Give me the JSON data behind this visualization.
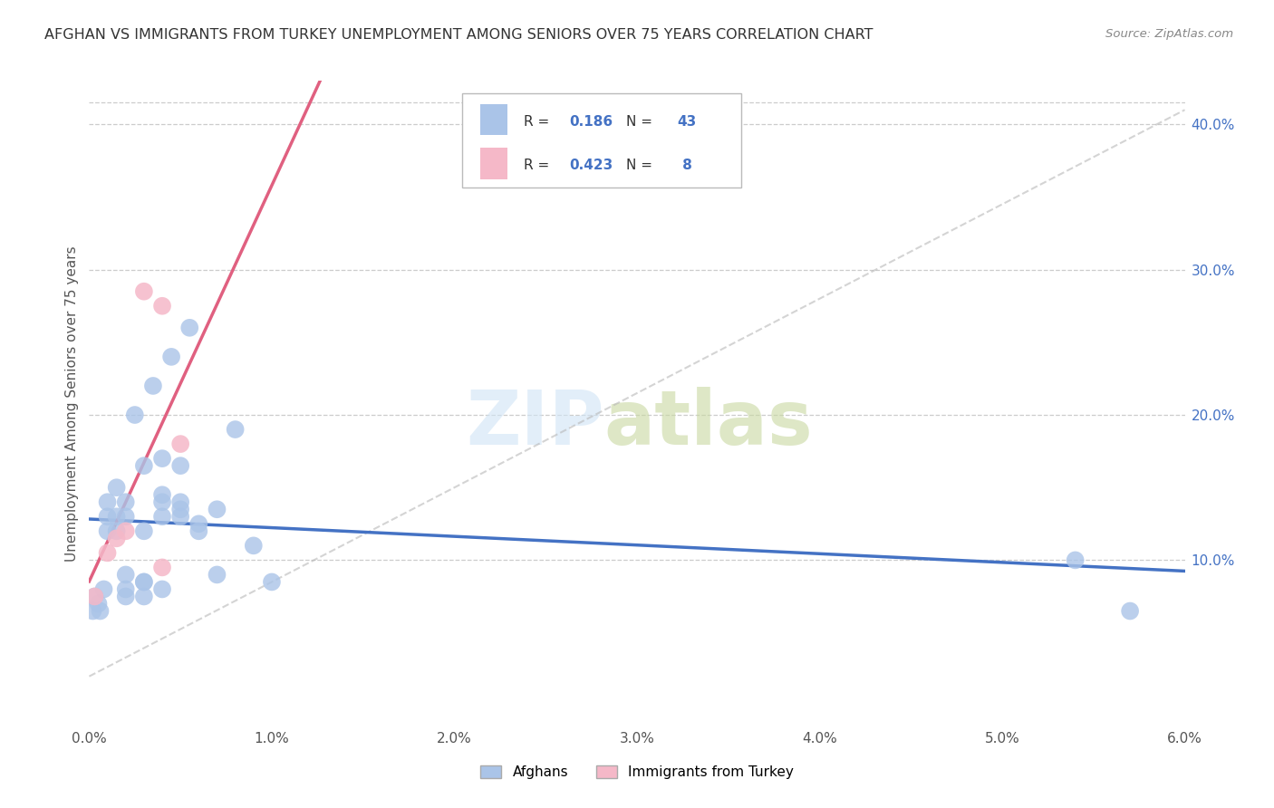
{
  "title": "AFGHAN VS IMMIGRANTS FROM TURKEY UNEMPLOYMENT AMONG SENIORS OVER 75 YEARS CORRELATION CHART",
  "source": "Source: ZipAtlas.com",
  "ylabel": "Unemployment Among Seniors over 75 years",
  "r_afghan": 0.186,
  "n_afghan": 43,
  "r_turkey": 0.423,
  "n_turkey": 8,
  "legend_label_afghan": "Afghans",
  "legend_label_turkey": "Immigrants from Turkey",
  "color_afghan": "#aac4e8",
  "color_turkey": "#f5b8c8",
  "color_afghan_line": "#4472c4",
  "color_turkey_line": "#e06080",
  "color_diagonal": "#b8b8b8",
  "xlim": [
    0.0,
    0.06
  ],
  "ylim": [
    -0.015,
    0.43
  ],
  "afghan_x": [
    0.0002,
    0.0003,
    0.0005,
    0.0006,
    0.0008,
    0.001,
    0.001,
    0.001,
    0.0015,
    0.0015,
    0.0015,
    0.002,
    0.002,
    0.002,
    0.002,
    0.002,
    0.0025,
    0.003,
    0.003,
    0.003,
    0.003,
    0.003,
    0.0035,
    0.004,
    0.004,
    0.004,
    0.004,
    0.004,
    0.0045,
    0.005,
    0.005,
    0.005,
    0.005,
    0.0055,
    0.006,
    0.006,
    0.007,
    0.007,
    0.008,
    0.009,
    0.01,
    0.054,
    0.057
  ],
  "afghan_y": [
    0.065,
    0.075,
    0.07,
    0.065,
    0.08,
    0.12,
    0.13,
    0.14,
    0.12,
    0.13,
    0.15,
    0.075,
    0.08,
    0.09,
    0.13,
    0.14,
    0.2,
    0.075,
    0.085,
    0.085,
    0.12,
    0.165,
    0.22,
    0.08,
    0.13,
    0.14,
    0.145,
    0.17,
    0.24,
    0.13,
    0.135,
    0.14,
    0.165,
    0.26,
    0.12,
    0.125,
    0.09,
    0.135,
    0.19,
    0.11,
    0.085,
    0.1,
    0.065
  ],
  "turkey_x": [
    0.0003,
    0.001,
    0.0015,
    0.002,
    0.003,
    0.004,
    0.004,
    0.005
  ],
  "turkey_y": [
    0.075,
    0.105,
    0.115,
    0.12,
    0.285,
    0.095,
    0.275,
    0.18
  ]
}
